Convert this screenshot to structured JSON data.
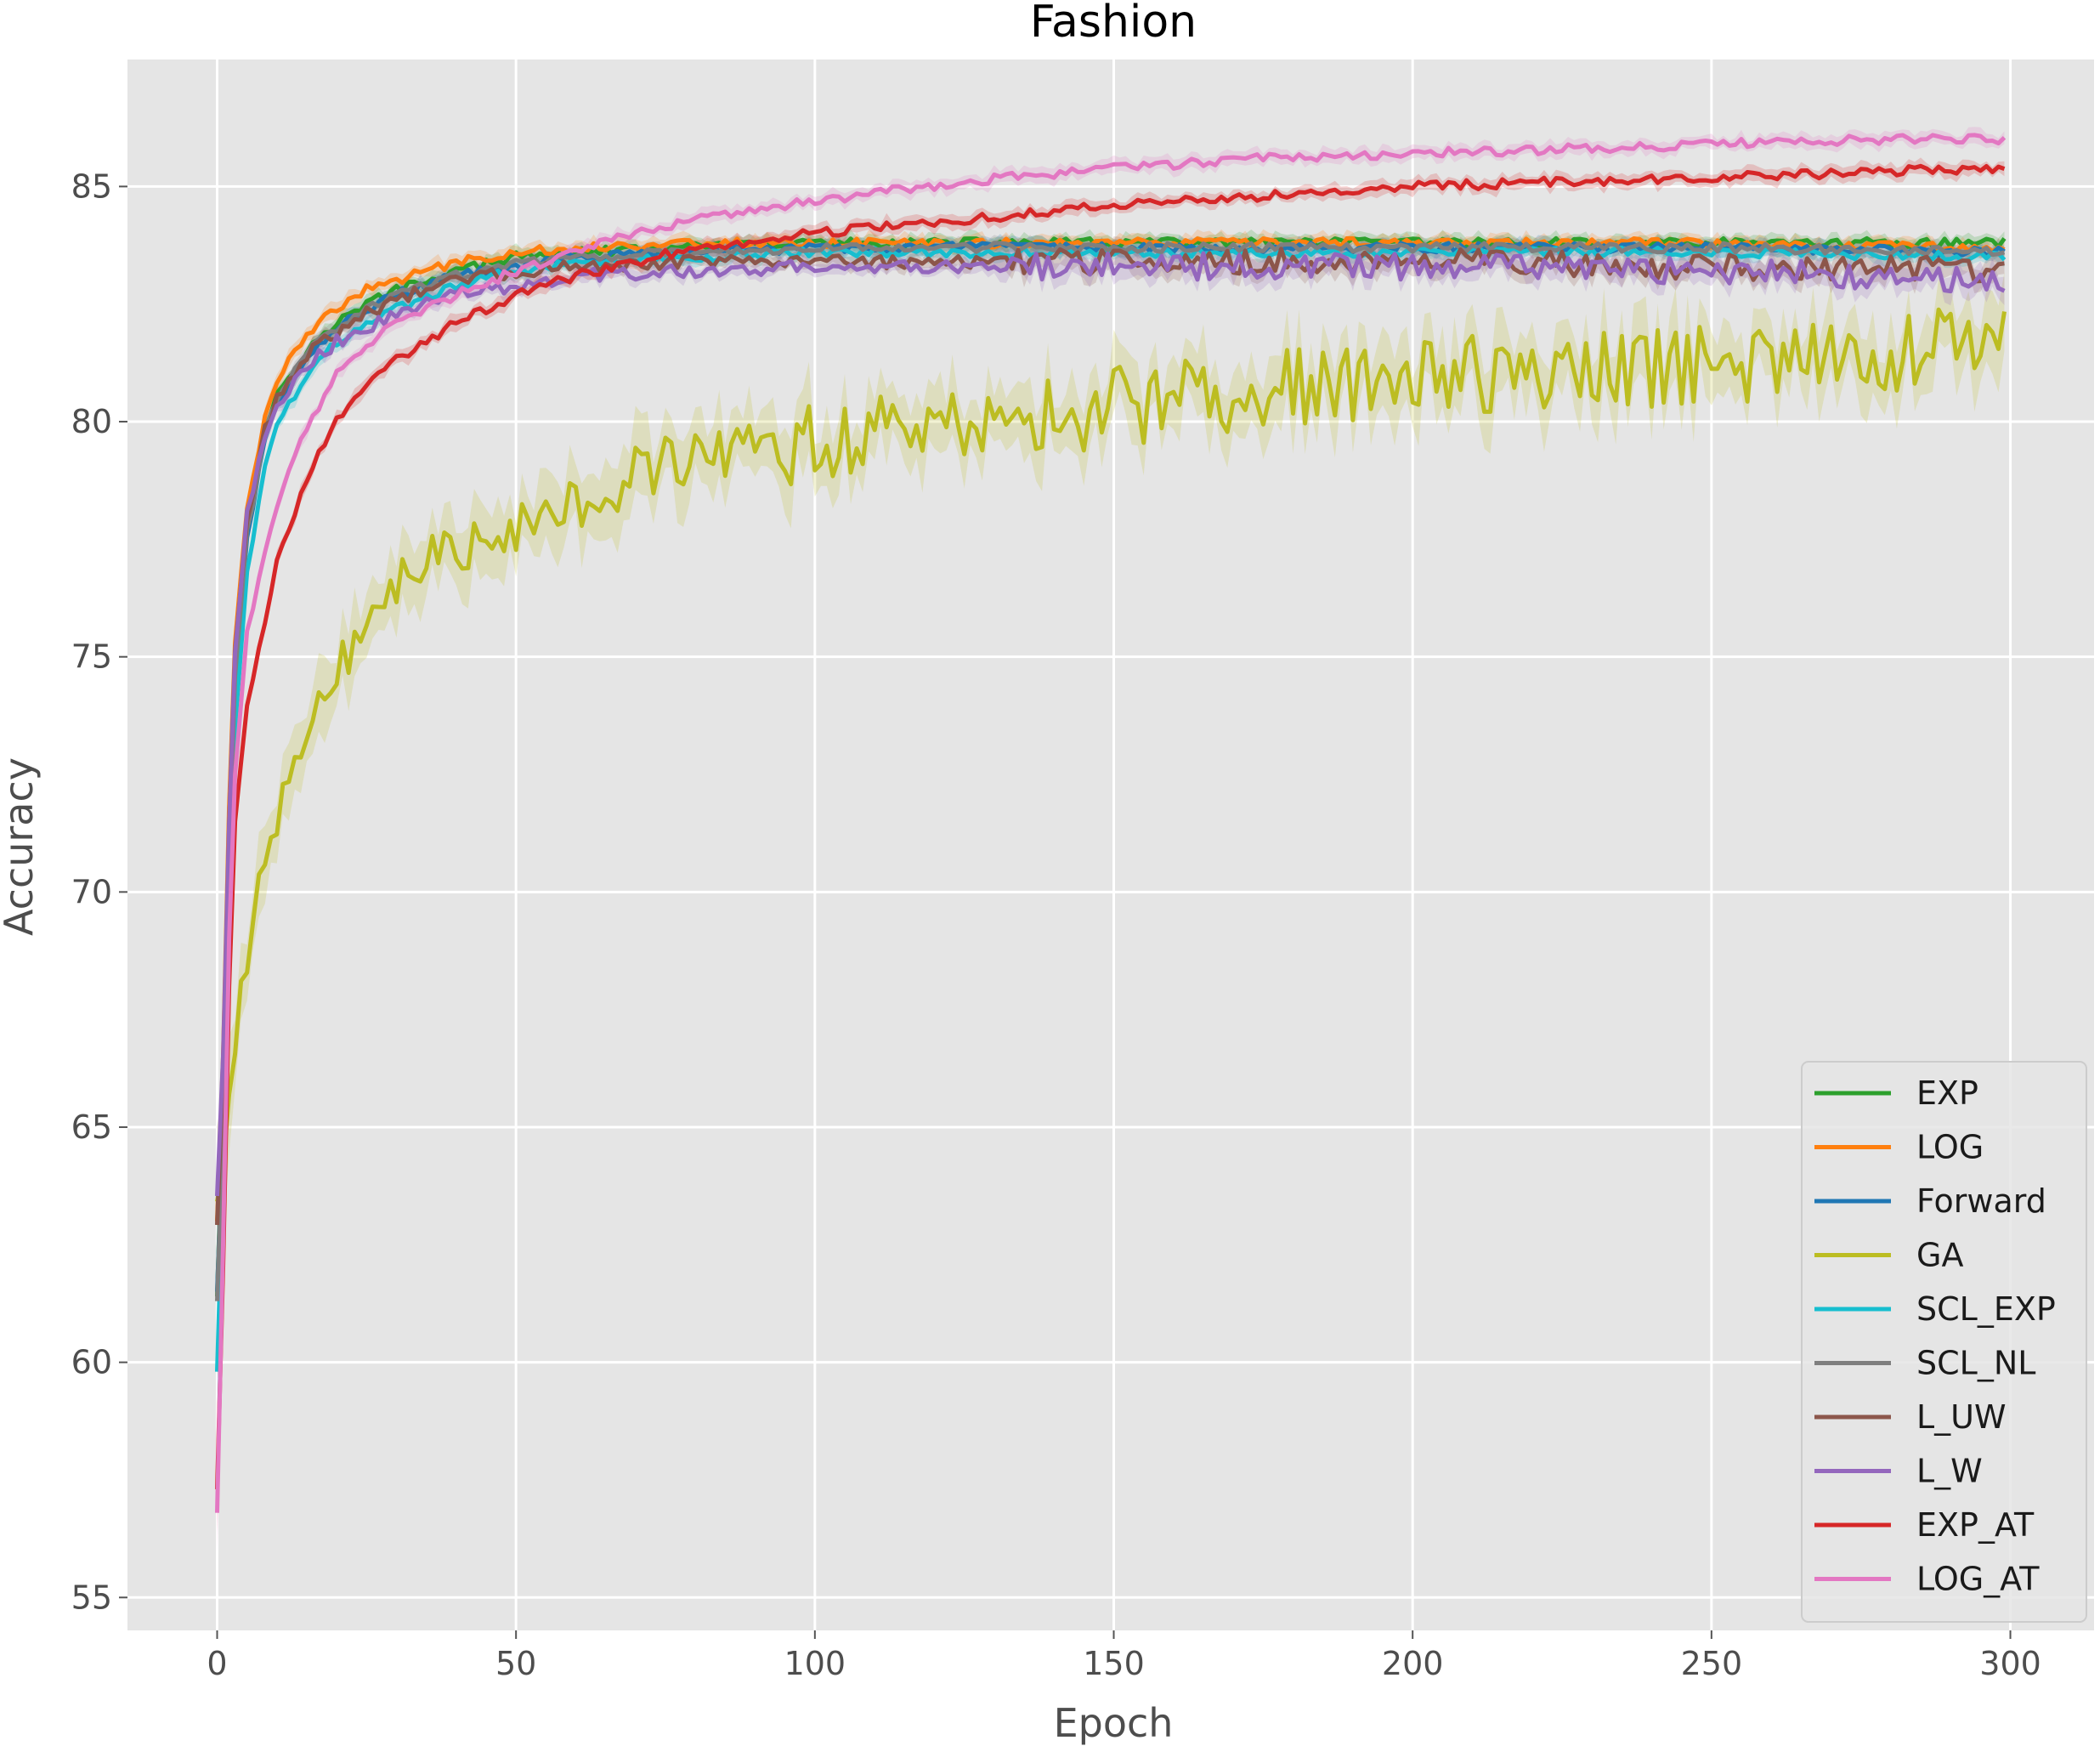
{
  "chart_data": {
    "type": "line",
    "title": "Fashion",
    "xlabel": "Epoch",
    "ylabel": "Accuracy",
    "xlim": [
      -15,
      314
    ],
    "ylim": [
      54.3,
      87.7
    ],
    "xticks": [
      0,
      50,
      100,
      150,
      200,
      250,
      300
    ],
    "yticks": [
      55,
      60,
      65,
      70,
      75,
      80,
      85
    ],
    "grid": true,
    "shaded_band": true,
    "legend_position": "lower-right",
    "series": [
      {
        "name": "EXP",
        "color": "#2ca02c",
        "x": [
          0,
          1,
          2,
          3,
          5,
          8,
          10,
          15,
          20,
          25,
          30,
          40,
          50,
          60,
          80,
          100,
          130,
          150,
          200,
          250,
          300
        ],
        "y": [
          61.4,
          65.5,
          71.0,
          74.8,
          77.8,
          79.8,
          80.6,
          81.5,
          82.1,
          82.5,
          82.8,
          83.2,
          83.5,
          83.6,
          83.7,
          83.8,
          83.8,
          83.8,
          83.8,
          83.8,
          83.8
        ]
      },
      {
        "name": "LOG",
        "color": "#ff7f0e",
        "x": [
          0,
          1,
          2,
          3,
          5,
          8,
          10,
          15,
          20,
          25,
          30,
          40,
          50,
          60,
          80,
          100,
          130,
          150,
          200,
          250,
          300
        ],
        "y": [
          63.0,
          66.5,
          71.8,
          75.3,
          78.2,
          80.1,
          80.9,
          81.9,
          82.4,
          82.8,
          83.0,
          83.4,
          83.6,
          83.7,
          83.8,
          83.8,
          83.8,
          83.8,
          83.8,
          83.8,
          83.7
        ]
      },
      {
        "name": "Forward",
        "color": "#1f77b4",
        "x": [
          0,
          1,
          2,
          3,
          5,
          8,
          10,
          15,
          20,
          25,
          30,
          40,
          50,
          60,
          80,
          100,
          130,
          150,
          200,
          250,
          300
        ],
        "y": [
          61.5,
          65.0,
          70.5,
          74.5,
          77.5,
          79.6,
          80.4,
          81.4,
          82.0,
          82.4,
          82.7,
          83.1,
          83.3,
          83.5,
          83.6,
          83.7,
          83.7,
          83.7,
          83.7,
          83.7,
          83.6
        ]
      },
      {
        "name": "GA",
        "color": "#bcbd22",
        "x": [
          0,
          2,
          4,
          6,
          8,
          10,
          12,
          15,
          20,
          25,
          30,
          35,
          40,
          45,
          50,
          60,
          70,
          80,
          90,
          100,
          120,
          150,
          175,
          200,
          225,
          250,
          275,
          300
        ],
        "y": [
          63.5,
          65.2,
          67.8,
          69.6,
          70.3,
          71.6,
          72.3,
          73.5,
          74.8,
          75.8,
          76.5,
          77.0,
          77.3,
          77.6,
          77.8,
          78.5,
          78.9,
          79.1,
          79.3,
          79.5,
          79.9,
          80.3,
          80.7,
          80.9,
          81.1,
          81.2,
          81.4,
          81.7
        ]
      },
      {
        "name": "SCL_EXP",
        "color": "#17becf",
        "x": [
          0,
          1,
          2,
          3,
          5,
          8,
          10,
          15,
          20,
          25,
          30,
          40,
          50,
          60,
          80,
          100,
          130,
          150,
          200,
          250,
          300
        ],
        "y": [
          59.8,
          64.0,
          69.5,
          73.5,
          76.8,
          79.0,
          79.9,
          81.0,
          81.7,
          82.1,
          82.4,
          82.9,
          83.2,
          83.4,
          83.5,
          83.6,
          83.6,
          83.6,
          83.6,
          83.6,
          83.5
        ]
      },
      {
        "name": "SCL_NL",
        "color": "#7f7f7f",
        "x": [
          0,
          1,
          2,
          3,
          5,
          8,
          10,
          15,
          20,
          25,
          30,
          40,
          50,
          60,
          80,
          100,
          130,
          150,
          200,
          250,
          300
        ],
        "y": [
          61.3,
          65.2,
          70.8,
          74.6,
          77.6,
          79.7,
          80.5,
          81.5,
          82.0,
          82.4,
          82.7,
          83.1,
          83.4,
          83.5,
          83.6,
          83.7,
          83.7,
          83.7,
          83.7,
          83.7,
          83.6
        ]
      },
      {
        "name": "L_UW",
        "color": "#8c564b",
        "x": [
          0,
          1,
          2,
          3,
          5,
          8,
          10,
          15,
          20,
          25,
          30,
          40,
          50,
          60,
          80,
          100,
          130,
          150,
          200,
          250,
          300
        ],
        "y": [
          62.9,
          66.2,
          71.3,
          75.0,
          77.9,
          79.8,
          80.5,
          81.4,
          81.9,
          82.3,
          82.6,
          83.0,
          83.2,
          83.3,
          83.4,
          83.4,
          83.4,
          83.4,
          83.4,
          83.3,
          83.2
        ]
      },
      {
        "name": "L_W",
        "color": "#9467bd",
        "x": [
          0,
          1,
          2,
          3,
          5,
          8,
          10,
          15,
          20,
          25,
          30,
          40,
          50,
          60,
          80,
          100,
          130,
          150,
          200,
          250,
          300
        ],
        "y": [
          63.5,
          66.6,
          71.5,
          75.1,
          78.0,
          79.8,
          80.4,
          81.2,
          81.7,
          82.0,
          82.3,
          82.7,
          82.9,
          83.1,
          83.2,
          83.3,
          83.3,
          83.3,
          83.3,
          83.2,
          83.0
        ]
      },
      {
        "name": "EXP_AT",
        "color": "#d62728",
        "x": [
          0,
          1,
          2,
          3,
          5,
          8,
          10,
          12,
          15,
          20,
          25,
          30,
          40,
          50,
          60,
          70,
          80,
          100,
          125,
          150,
          175,
          200,
          225,
          250,
          275,
          300
        ],
        "y": [
          57.3,
          62.0,
          68.0,
          71.5,
          74.0,
          75.8,
          77.0,
          77.7,
          78.8,
          80.0,
          80.8,
          81.3,
          82.1,
          82.7,
          83.1,
          83.4,
          83.7,
          84.0,
          84.3,
          84.6,
          84.8,
          85.0,
          85.1,
          85.2,
          85.3,
          85.4
        ]
      },
      {
        "name": "LOG_AT",
        "color": "#e377c2",
        "x": [
          0,
          1,
          2,
          3,
          5,
          8,
          10,
          12,
          15,
          20,
          25,
          30,
          40,
          50,
          60,
          70,
          80,
          100,
          125,
          150,
          175,
          200,
          225,
          250,
          275,
          300
        ],
        "y": [
          56.8,
          62.5,
          69.0,
          72.5,
          75.5,
          77.3,
          78.2,
          78.9,
          79.9,
          81.0,
          81.6,
          82.1,
          82.7,
          83.2,
          83.6,
          84.0,
          84.3,
          84.7,
          85.1,
          85.4,
          85.6,
          85.7,
          85.8,
          85.9,
          86.0,
          86.0
        ]
      }
    ]
  }
}
